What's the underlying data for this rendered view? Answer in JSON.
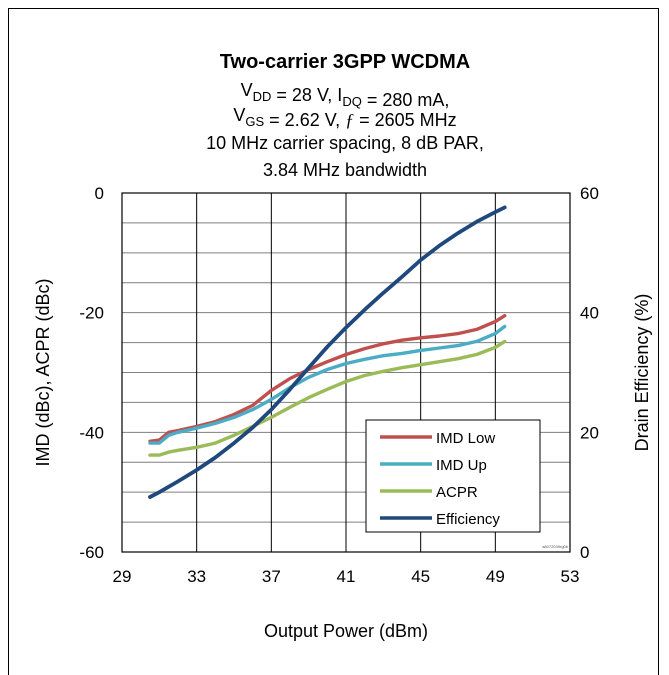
{
  "chart_data": {
    "type": "line",
    "title": "Two-carrier 3GPP WCDMA",
    "subtitle_lines": [
      {
        "parts": [
          [
            "V",
            "n"
          ],
          [
            "DD",
            "s"
          ],
          [
            " = 28 V, I",
            "n"
          ],
          [
            "DQ",
            "s"
          ],
          [
            " = 280 mA,",
            "n"
          ]
        ]
      },
      {
        "parts": [
          [
            "V",
            "n"
          ],
          [
            "GS",
            "s"
          ],
          [
            " = 2.62 V, ",
            "n"
          ],
          [
            "ƒ",
            "i"
          ],
          [
            " = 2605 MHz",
            "n"
          ]
        ]
      },
      {
        "parts": [
          [
            "10 MHz carrier spacing, 8 dB PAR,",
            "n"
          ]
        ]
      },
      {
        "parts": [
          [
            "3.84 MHz bandwidth",
            "n"
          ]
        ]
      }
    ],
    "xlabel": "Output Power (dBm)",
    "ylabel": "IMD (dBc), ACPR (dBc)",
    "y2label": "Drain Efficiency (%)",
    "xlim": [
      29,
      53
    ],
    "ylim": [
      -60,
      0
    ],
    "y2lim": [
      0,
      60
    ],
    "xticks": [
      29,
      33,
      37,
      41,
      45,
      49,
      53
    ],
    "yticks": [
      0,
      -20,
      -40,
      -60
    ],
    "y2ticks": [
      60,
      40,
      20,
      0
    ],
    "grid": true,
    "legend_position": "bottom-right",
    "watermark": "a8072039rg0b",
    "series": [
      {
        "name": "IMD Low",
        "axis": "left",
        "color": "#c0504d",
        "x": [
          30.5,
          31.0,
          31.5,
          32.0,
          33.0,
          34.0,
          35.0,
          36.0,
          37.0,
          38.0,
          39.0,
          40.0,
          41.0,
          42.0,
          43.0,
          44.0,
          45.0,
          46.0,
          47.0,
          48.0,
          49.0,
          49.5
        ],
        "y": [
          -41.5,
          -41.3,
          -40.0,
          -39.7,
          -39.0,
          -38.2,
          -37.0,
          -35.5,
          -33.0,
          -31.0,
          -29.5,
          -28.2,
          -27.0,
          -26.0,
          -25.2,
          -24.6,
          -24.2,
          -23.9,
          -23.5,
          -22.8,
          -21.5,
          -20.5
        ]
      },
      {
        "name": "IMD Up",
        "axis": "left",
        "color": "#4bacc6",
        "x": [
          30.5,
          31.0,
          31.5,
          32.0,
          33.0,
          34.0,
          35.0,
          36.0,
          37.0,
          38.0,
          39.0,
          40.0,
          41.0,
          42.0,
          43.0,
          44.0,
          45.0,
          46.0,
          47.0,
          48.0,
          49.0,
          49.5
        ],
        "y": [
          -41.8,
          -41.8,
          -40.5,
          -40.0,
          -39.3,
          -38.5,
          -37.5,
          -36.2,
          -34.5,
          -32.5,
          -30.8,
          -29.5,
          -28.5,
          -27.8,
          -27.2,
          -26.8,
          -26.3,
          -25.9,
          -25.5,
          -24.8,
          -23.5,
          -22.3
        ]
      },
      {
        "name": "ACPR",
        "axis": "left",
        "color": "#9bbb59",
        "x": [
          30.5,
          31.0,
          31.5,
          32.0,
          33.0,
          34.0,
          35.0,
          36.0,
          37.0,
          38.0,
          39.0,
          40.0,
          41.0,
          42.0,
          43.0,
          44.0,
          45.0,
          46.0,
          47.0,
          48.0,
          49.0,
          49.5
        ],
        "y": [
          -43.8,
          -43.8,
          -43.3,
          -43.0,
          -42.5,
          -41.8,
          -40.5,
          -39.0,
          -37.5,
          -35.8,
          -34.2,
          -32.8,
          -31.5,
          -30.5,
          -29.8,
          -29.2,
          -28.7,
          -28.2,
          -27.7,
          -27.0,
          -25.8,
          -24.8
        ]
      },
      {
        "name": "Efficiency",
        "axis": "right",
        "color": "#1f497d",
        "x": [
          30.5,
          31.0,
          32.0,
          33.0,
          34.0,
          35.0,
          36.0,
          37.0,
          38.0,
          39.0,
          40.0,
          41.0,
          42.0,
          43.0,
          44.0,
          45.0,
          46.0,
          47.0,
          48.0,
          49.0,
          49.5
        ],
        "y": [
          9.2,
          10.0,
          11.8,
          13.7,
          15.8,
          18.2,
          20.8,
          23.8,
          27.2,
          30.8,
          34.3,
          37.5,
          40.5,
          43.3,
          46.0,
          48.8,
          51.2,
          53.3,
          55.2,
          56.8,
          57.6
        ]
      }
    ]
  }
}
